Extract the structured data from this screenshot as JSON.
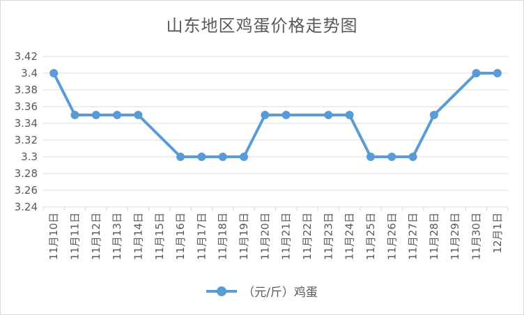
{
  "chart_data": {
    "type": "line",
    "title": "山东地区鸡蛋价格走势图",
    "categories": [
      "11月10日",
      "11月11日",
      "11月12日",
      "11月13日",
      "11月14日",
      "11月15日",
      "11月16日",
      "11月17日",
      "11月18日",
      "11月19日",
      "11月20日",
      "11月21日",
      "11月22日",
      "11月23日",
      "11月24日",
      "11月25日",
      "11月26日",
      "11月27日",
      "11月28日",
      "11月29日",
      "11月30日",
      "12月1日"
    ],
    "series": [
      {
        "name": "（元/斤）鸡蛋",
        "values": [
          3.4,
          3.35,
          3.35,
          3.35,
          3.35,
          null,
          3.3,
          3.3,
          3.3,
          3.3,
          3.35,
          3.35,
          null,
          3.35,
          3.35,
          3.3,
          3.3,
          3.3,
          3.35,
          null,
          3.4,
          3.4
        ],
        "color": "#5b9bd5"
      }
    ],
    "yticks": [
      "3.24",
      "3.26",
      "3.28",
      "3.3",
      "3.32",
      "3.34",
      "3.36",
      "3.38",
      "3.4",
      "3.42"
    ],
    "ylim": [
      3.24,
      3.42
    ],
    "grid": true,
    "legend_position": "bottom"
  }
}
